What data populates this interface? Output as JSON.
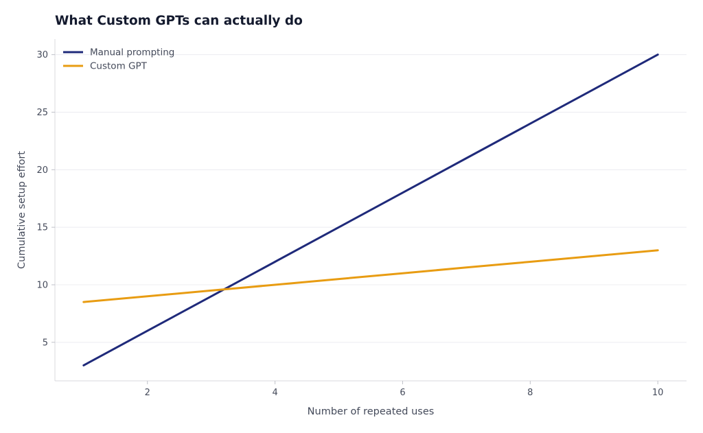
{
  "chart_data": {
    "type": "line",
    "title": "What Custom GPTs can actually do",
    "xlabel": "Number of repeated uses",
    "ylabel": "Cumulative setup effort",
    "x": [
      1,
      2,
      3,
      4,
      5,
      6,
      7,
      8,
      9,
      10
    ],
    "xlim": [
      0.55,
      10.45
    ],
    "ylim": [
      1.65,
      31.35
    ],
    "xticks": [
      2,
      4,
      6,
      8,
      10
    ],
    "yticks": [
      5,
      10,
      15,
      20,
      25,
      30
    ],
    "grid": "horizontal",
    "legend_position": "top-left",
    "series": [
      {
        "name": "Manual prompting",
        "color": "#1f2a7a",
        "values": [
          3,
          6,
          9,
          12,
          15,
          18,
          21,
          24,
          27,
          30
        ]
      },
      {
        "name": "Custom GPT",
        "color": "#e89c12",
        "values": [
          8.5,
          9,
          9.5,
          10,
          10.5,
          11,
          11.5,
          12,
          12.5,
          13
        ]
      }
    ]
  }
}
